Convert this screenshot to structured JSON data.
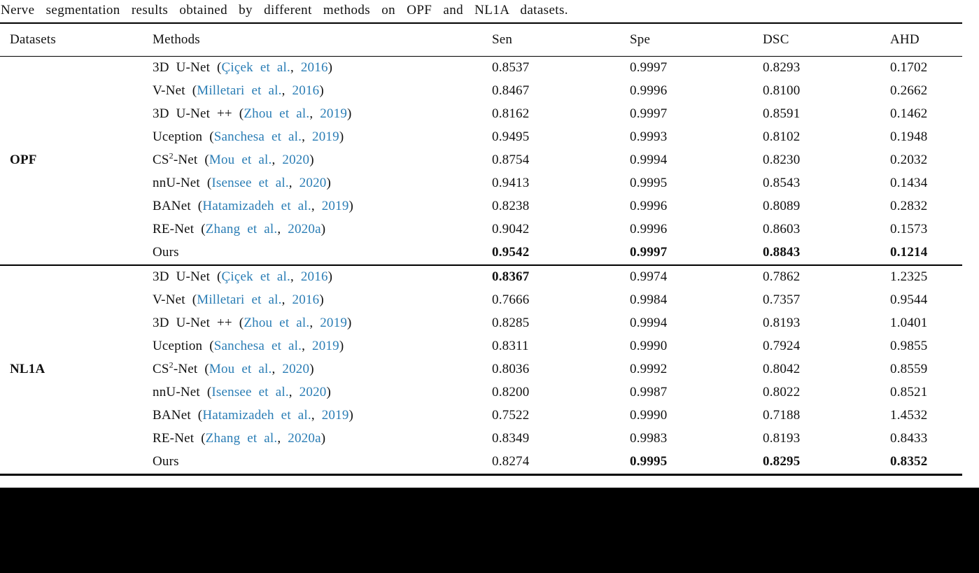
{
  "caption": "Nerve segmentation results obtained by different methods on OPF and NL1A datasets.",
  "header": {
    "columns": [
      "Datasets",
      "Methods",
      "Sen",
      "Spe",
      "DSC",
      "AHD"
    ]
  },
  "citation_format": {
    "open": " (",
    "sep": ", ",
    "close": ")"
  },
  "link_color": "#2a7db5",
  "groups": [
    {
      "dataset": "OPF",
      "rows": [
        {
          "name": "3D U-Net",
          "sup": "",
          "name_post": "",
          "cite_authors": "Çiçek et al.",
          "cite_year": "2016",
          "values": [
            "0.8537",
            "0.9997",
            "0.8293",
            "0.1702"
          ],
          "bold": [
            false,
            false,
            false,
            false
          ]
        },
        {
          "name": "V-Net",
          "sup": "",
          "name_post": "",
          "cite_authors": "Milletari et al.",
          "cite_year": "2016",
          "values": [
            "0.8467",
            "0.9996",
            "0.8100",
            "0.2662"
          ],
          "bold": [
            false,
            false,
            false,
            false
          ]
        },
        {
          "name": "3D U-Net ++",
          "sup": "",
          "name_post": "",
          "cite_authors": "Zhou et al.",
          "cite_year": "2019",
          "values": [
            "0.8162",
            "0.9997",
            "0.8591",
            "0.1462"
          ],
          "bold": [
            false,
            false,
            false,
            false
          ]
        },
        {
          "name": "Uception",
          "sup": "",
          "name_post": "",
          "cite_authors": "Sanchesa et al.",
          "cite_year": "2019",
          "values": [
            "0.9495",
            "0.9993",
            "0.8102",
            "0.1948"
          ],
          "bold": [
            false,
            false,
            false,
            false
          ]
        },
        {
          "name": "CS",
          "sup": "2",
          "name_post": "-Net",
          "cite_authors": "Mou et al.",
          "cite_year": "2020",
          "values": [
            "0.8754",
            "0.9994",
            "0.8230",
            "0.2032"
          ],
          "bold": [
            false,
            false,
            false,
            false
          ]
        },
        {
          "name": "nnU-Net",
          "sup": "",
          "name_post": "",
          "cite_authors": "Isensee et al.",
          "cite_year": "2020",
          "values": [
            "0.9413",
            "0.9995",
            "0.8543",
            "0.1434"
          ],
          "bold": [
            false,
            false,
            false,
            false
          ]
        },
        {
          "name": "BANet",
          "sup": "",
          "name_post": "",
          "cite_authors": "Hatamizadeh et al.",
          "cite_year": "2019",
          "values": [
            "0.8238",
            "0.9996",
            "0.8089",
            "0.2832"
          ],
          "bold": [
            false,
            false,
            false,
            false
          ]
        },
        {
          "name": "RE-Net",
          "sup": "",
          "name_post": "",
          "cite_authors": "Zhang et al.",
          "cite_year": "2020a",
          "values": [
            "0.9042",
            "0.9996",
            "0.8603",
            "0.1573"
          ],
          "bold": [
            false,
            false,
            false,
            false
          ]
        },
        {
          "name": "Ours",
          "sup": "",
          "name_post": "",
          "cite_authors": "",
          "cite_year": "",
          "values": [
            "0.9542",
            "0.9997",
            "0.8843",
            "0.1214"
          ],
          "bold": [
            true,
            true,
            true,
            true
          ]
        }
      ]
    },
    {
      "dataset": "NL1A",
      "rows": [
        {
          "name": "3D U-Net",
          "sup": "",
          "name_post": "",
          "cite_authors": "Çiçek et al.",
          "cite_year": "2016",
          "values": [
            "0.8367",
            "0.9974",
            "0.7862",
            "1.2325"
          ],
          "bold": [
            true,
            false,
            false,
            false
          ]
        },
        {
          "name": "V-Net",
          "sup": "",
          "name_post": "",
          "cite_authors": "Milletari et al.",
          "cite_year": "2016",
          "values": [
            "0.7666",
            "0.9984",
            "0.7357",
            "0.9544"
          ],
          "bold": [
            false,
            false,
            false,
            false
          ]
        },
        {
          "name": "3D U-Net ++",
          "sup": "",
          "name_post": "",
          "cite_authors": "Zhou et al.",
          "cite_year": "2019",
          "values": [
            "0.8285",
            "0.9994",
            "0.8193",
            "1.0401"
          ],
          "bold": [
            false,
            false,
            false,
            false
          ]
        },
        {
          "name": "Uception",
          "sup": "",
          "name_post": "",
          "cite_authors": "Sanchesa et al.",
          "cite_year": "2019",
          "values": [
            "0.8311",
            "0.9990",
            "0.7924",
            "0.9855"
          ],
          "bold": [
            false,
            false,
            false,
            false
          ]
        },
        {
          "name": "CS",
          "sup": "2",
          "name_post": "-Net",
          "cite_authors": "Mou et al.",
          "cite_year": "2020",
          "values": [
            "0.8036",
            "0.9992",
            "0.8042",
            "0.8559"
          ],
          "bold": [
            false,
            false,
            false,
            false
          ]
        },
        {
          "name": "nnU-Net",
          "sup": "",
          "name_post": "",
          "cite_authors": "Isensee et al.",
          "cite_year": "2020",
          "values": [
            "0.8200",
            "0.9987",
            "0.8022",
            "0.8521"
          ],
          "bold": [
            false,
            false,
            false,
            false
          ]
        },
        {
          "name": "BANet",
          "sup": "",
          "name_post": "",
          "cite_authors": "Hatamizadeh et al.",
          "cite_year": "2019",
          "values": [
            "0.7522",
            "0.9990",
            "0.7188",
            "1.4532"
          ],
          "bold": [
            false,
            false,
            false,
            false
          ]
        },
        {
          "name": "RE-Net",
          "sup": "",
          "name_post": "",
          "cite_authors": "Zhang et al.",
          "cite_year": "2020a",
          "values": [
            "0.8349",
            "0.9983",
            "0.8193",
            "0.8433"
          ],
          "bold": [
            false,
            false,
            false,
            false
          ]
        },
        {
          "name": "Ours",
          "sup": "",
          "name_post": "",
          "cite_authors": "",
          "cite_year": "",
          "values": [
            "0.8274",
            "0.9995",
            "0.8295",
            "0.8352"
          ],
          "bold": [
            false,
            true,
            true,
            true
          ]
        }
      ]
    }
  ]
}
